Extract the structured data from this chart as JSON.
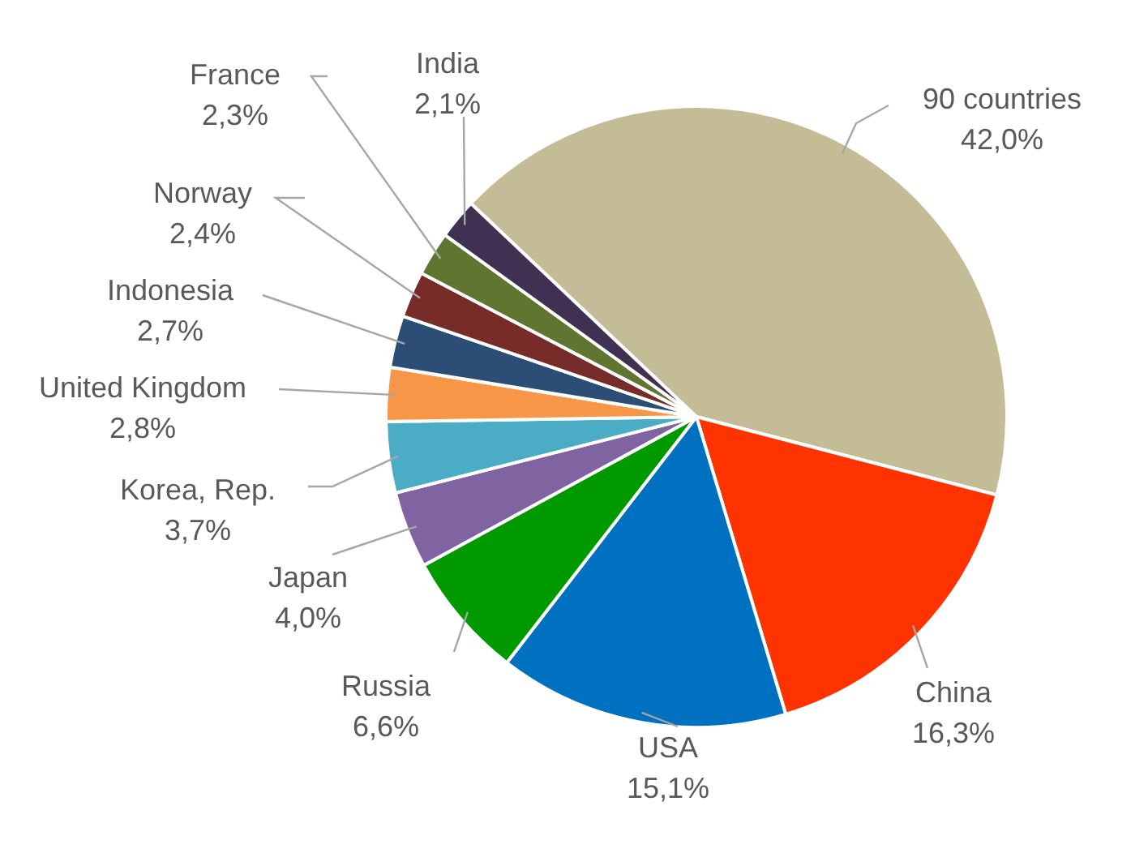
{
  "chart_data": {
    "type": "pie",
    "categories": [
      "90 countries",
      "China",
      "USA",
      "Russia",
      "Japan",
      "Korea, Rep.",
      "United Kingdom",
      "Indonesia",
      "Norway",
      "France",
      "India"
    ],
    "values": [
      42.0,
      16.3,
      15.1,
      6.6,
      4.0,
      3.7,
      2.8,
      2.7,
      2.4,
      2.3,
      2.1
    ],
    "value_labels": [
      "42,0%",
      "16,3%",
      "15,1%",
      "6,6%",
      "4,0%",
      "3,7%",
      "2,8%",
      "2,7%",
      "2,4%",
      "2,3%",
      "2,1%"
    ],
    "colors": [
      "#c4bc96",
      "#ff3300",
      "#0070c0",
      "#009900",
      "#8064a2",
      "#4bacc6",
      "#f79646",
      "#2c4d75",
      "#772c2a",
      "#5f7530",
      "#403152"
    ],
    "legend": false
  }
}
